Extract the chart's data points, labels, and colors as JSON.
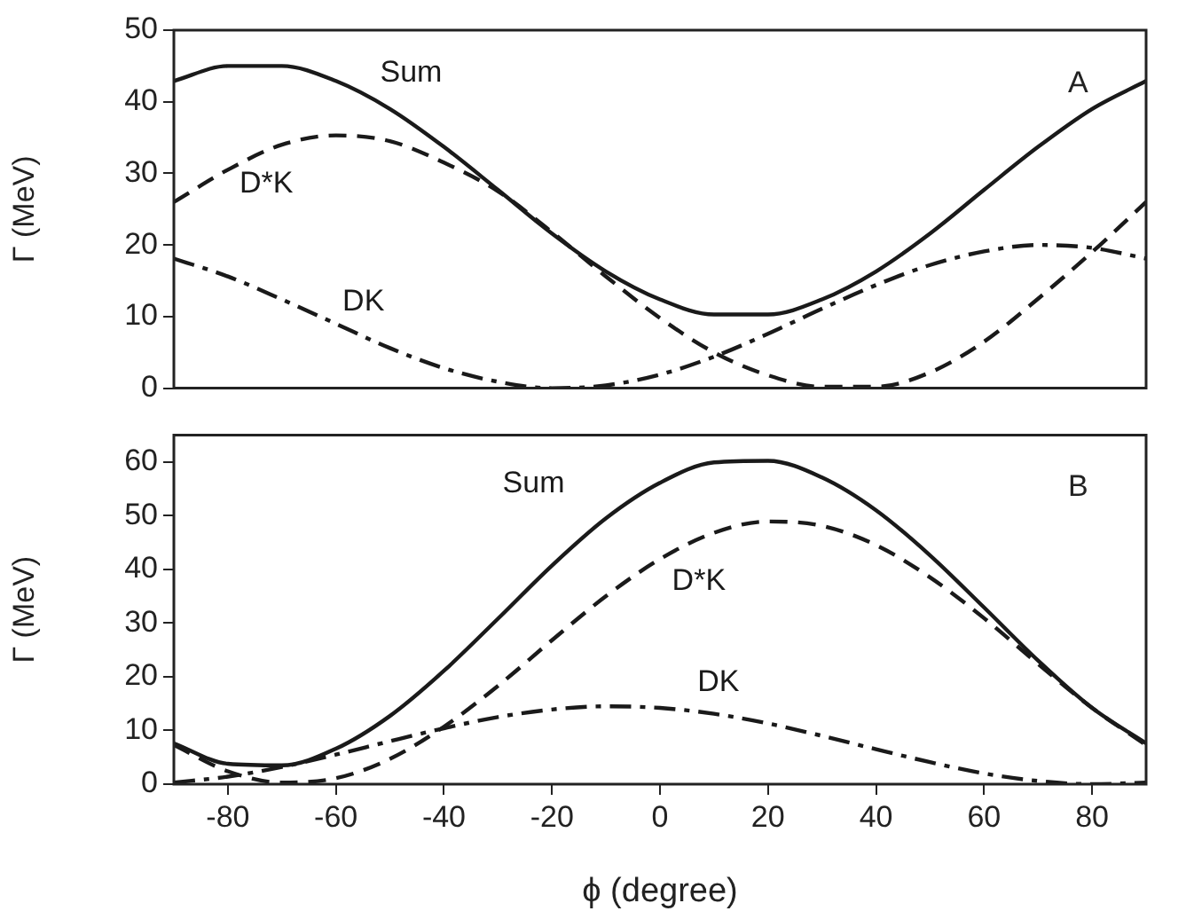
{
  "chart_data": [
    {
      "type": "line",
      "ylabel": "Γ (MeV)",
      "xlim": [
        -90,
        90
      ],
      "ylim": [
        0,
        50
      ],
      "yticks": [
        0,
        10,
        20,
        30,
        40,
        50
      ],
      "tick_labels": "y",
      "grid": false,
      "legend": false,
      "marker": "none",
      "x": [
        -90,
        -80,
        -70,
        -60,
        -50,
        -40,
        -30,
        -20,
        -10,
        0,
        10,
        20,
        30,
        40,
        50,
        60,
        70,
        80,
        90
      ],
      "series": [
        {
          "name": "Sum",
          "color": "#1a1a1a",
          "line_style": "solid",
          "values": [
            42.9,
            45.0,
            45.0,
            42.9,
            39.0,
            33.7,
            27.7,
            21.6,
            16.3,
            12.4,
            10.3,
            10.3,
            12.4,
            16.3,
            21.6,
            27.7,
            33.7,
            39.0,
            42.9
          ]
        },
        {
          "name": "D*K",
          "color": "#1a1a1a",
          "line_style": "dashed",
          "values": [
            26.0,
            30.5,
            34.0,
            35.3,
            34.5,
            31.5,
            27.5,
            21.8,
            15.6,
            9.8,
            5.0,
            1.8,
            0.2,
            0.2,
            2.2,
            6.5,
            12.5,
            19.0,
            26.0
          ]
        },
        {
          "name": "DK",
          "color": "#1a1a1a",
          "line_style": "dashdot",
          "values": [
            18.1,
            15.6,
            12.4,
            9.0,
            5.6,
            2.8,
            0.9,
            0.0,
            0.4,
            1.9,
            4.4,
            7.6,
            11.1,
            14.4,
            17.2,
            19.1,
            20.0,
            19.6,
            18.1
          ]
        }
      ],
      "annotations": [
        "A"
      ]
    },
    {
      "type": "line",
      "xlabel": "ϕ (degree)",
      "ylabel": "Γ (MeV)",
      "xlim": [
        -90,
        90
      ],
      "xticks": [
        -80,
        -60,
        -40,
        -20,
        0,
        20,
        40,
        60,
        80
      ],
      "ylim": [
        0,
        65
      ],
      "yticks": [
        0,
        10,
        20,
        30,
        40,
        50,
        60
      ],
      "grid": false,
      "legend": false,
      "marker": "none",
      "x": [
        -90,
        -80,
        -70,
        -60,
        -50,
        -40,
        -30,
        -20,
        -10,
        0,
        10,
        20,
        30,
        40,
        50,
        60,
        70,
        80,
        90
      ],
      "series": [
        {
          "name": "Sum",
          "color": "#1a1a1a",
          "line_style": "solid",
          "values": [
            7.6,
            3.8,
            3.5,
            6.6,
            12.7,
            21.1,
            30.8,
            40.7,
            49.5,
            56.1,
            59.9,
            60.2,
            57.1,
            51.0,
            42.6,
            32.9,
            23.0,
            14.2,
            7.6
          ]
        },
        {
          "name": "D*K",
          "color": "#1a1a1a",
          "line_style": "dashed",
          "values": [
            7.3,
            2.4,
            0.3,
            1.1,
            4.7,
            10.7,
            18.3,
            26.8,
            35.0,
            41.9,
            46.8,
            48.9,
            48.1,
            44.5,
            38.5,
            30.9,
            22.4,
            14.2,
            7.3
          ]
        },
        {
          "name": "DK",
          "color": "#1a1a1a",
          "line_style": "dashdot",
          "values": [
            0.3,
            1.4,
            3.2,
            5.5,
            8.0,
            10.4,
            12.5,
            13.9,
            14.5,
            14.2,
            13.1,
            11.3,
            9.0,
            6.5,
            4.1,
            2.0,
            0.6,
            0.0,
            0.3
          ]
        }
      ],
      "annotations": [
        "B"
      ]
    }
  ]
}
